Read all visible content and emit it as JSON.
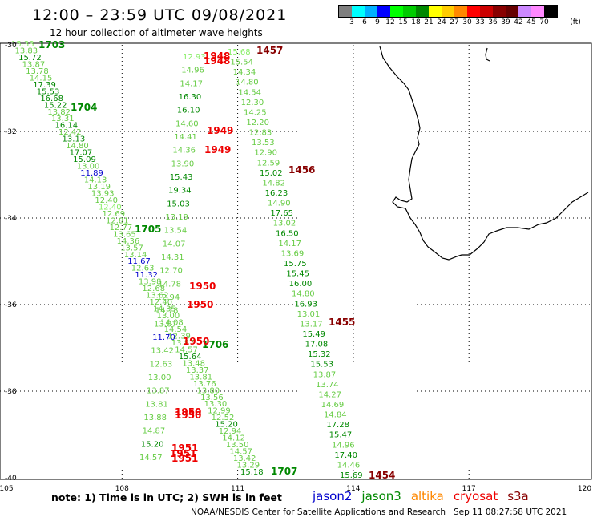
{
  "header": {
    "title": "12:00 – 23:59 UTC 09/08/2021",
    "subtitle": "12 hour collection of altimeter wave heights"
  },
  "colorbar": {
    "colors": [
      "#7f7f7f",
      "#00ffff",
      "#00b0ff",
      "#0000ff",
      "#00ff00",
      "#00cc00",
      "#008800",
      "#ffff00",
      "#ffcc00",
      "#ff8800",
      "#ff0000",
      "#cc0000",
      "#880000",
      "#660000",
      "#cc88ff",
      "#ff88ff",
      "#000000"
    ],
    "labels": [
      "3",
      "6",
      "9",
      "12",
      "15",
      "18",
      "21",
      "24",
      "27",
      "30",
      "33",
      "36",
      "39",
      "42",
      "45",
      "70",
      "(ft)"
    ]
  },
  "axes": {
    "lon_ticks": [
      "105",
      "108",
      "111",
      "114",
      "117",
      "120"
    ],
    "lat_ticks": [
      "-30",
      "-32",
      "-34",
      "-36",
      "-38",
      "-40"
    ]
  },
  "tracks": {
    "jason3_left": {
      "values": [
        "15.33",
        "13.83",
        "15.72",
        "13.87",
        "13.78",
        "14.15",
        "17.39",
        "15.53",
        "16.68",
        "15.22",
        "13.82",
        "13.31",
        "16.14",
        "12.42",
        "13.13",
        "14.80",
        "17.07",
        "15.09",
        "13.00",
        "11.89",
        "14.13",
        "13.19",
        "13.93",
        "12.40",
        "12.40",
        "12.69",
        "12.81",
        "12.77",
        "13.65",
        "14.36",
        "13.57",
        "13.14",
        "11.67",
        "12.63",
        "11.32",
        "13.98",
        "12.68",
        "13.62",
        "12.40",
        "14.35",
        "13.00",
        "14.08",
        "14.54",
        "12.39",
        "13.87",
        "14.57",
        "15.64",
        "13.48",
        "13.37",
        "13.81",
        "13.76",
        "13.80",
        "13.56",
        "13.30",
        "12.99",
        "12.52",
        "15.20",
        "12.94",
        "14.12",
        "13.50",
        "14.57",
        "13.42",
        "13.29",
        "15.18"
      ],
      "colors": [
        "#88ee66",
        "#66cc44",
        "#008800",
        "#66cc44",
        "#66cc44",
        "#66cc44",
        "#008800",
        "#008800",
        "#008800",
        "#008800",
        "#66cc44",
        "#66cc44",
        "#008800",
        "#66cc44",
        "#008800",
        "#66cc44",
        "#008800",
        "#008800",
        "#66cc44",
        "#0000cc",
        "#66cc44",
        "#66cc44",
        "#66cc44",
        "#66cc44",
        "#88ee66",
        "#66cc44",
        "#66cc44",
        "#66cc44",
        "#66cc44",
        "#66cc44",
        "#66cc44",
        "#66cc44",
        "#0000cc",
        "#66cc44",
        "#0000cc",
        "#66cc44",
        "#66cc44",
        "#66cc44",
        "#66cc44",
        "#66cc44",
        "#66cc44",
        "#66cc44",
        "#66cc44",
        "#66cc44",
        "#66cc44",
        "#66cc44",
        "#008800",
        "#66cc44",
        "#66cc44",
        "#66cc44",
        "#66cc44",
        "#66cc44",
        "#66cc44",
        "#66cc44",
        "#66cc44",
        "#66cc44",
        "#008800",
        "#66cc44",
        "#66cc44",
        "#66cc44",
        "#66cc44",
        "#66cc44",
        "#66cc44",
        "#008800"
      ]
    },
    "jason3_mid": {
      "values": [
        "12.93",
        "14.96",
        "14.17",
        "16.30",
        "16.10",
        "14.60",
        "14.41",
        "14.36",
        "13.90",
        "15.43",
        "19.34",
        "15.03",
        "13.19",
        "13.54",
        "14.07",
        "14.31",
        "12.70",
        "14.78",
        "12.94",
        "14.78",
        "13.07",
        "11.70",
        "13.42",
        "12.63",
        "13.00",
        "13.87",
        "13.81",
        "13.88",
        "14.87",
        "15.20",
        "14.57"
      ],
      "colors": [
        "#88ee66",
        "#66cc44",
        "#66cc44",
        "#008800",
        "#008800",
        "#66cc44",
        "#66cc44",
        "#66cc44",
        "#66cc44",
        "#008800",
        "#008800",
        "#008800",
        "#66cc44",
        "#66cc44",
        "#66cc44",
        "#66cc44",
        "#66cc44",
        "#66cc44",
        "#66cc44",
        "#66cc44",
        "#66cc44",
        "#0000cc",
        "#66cc44",
        "#66cc44",
        "#66cc44",
        "#66cc44",
        "#66cc44",
        "#66cc44",
        "#66cc44",
        "#008800",
        "#66cc44"
      ],
      "time_labels": [
        {
          "text": "1703",
          "color": "#008800"
        },
        {
          "text": "1704",
          "color": "#008800"
        },
        {
          "text": "1705",
          "color": "#008800"
        },
        {
          "text": "1706",
          "color": "#008800"
        },
        {
          "text": "1707",
          "color": "#008800"
        }
      ]
    },
    "jason3_right": {
      "values": [
        "15.68",
        "15.54",
        "14.34",
        "14.80",
        "14.54",
        "12.30",
        "14.25",
        "12.20",
        "12.83",
        "13.53",
        "12.90",
        "12.59",
        "15.02",
        "14.82",
        "16.23",
        "14.90",
        "17.65",
        "13.02",
        "16.50",
        "14.17",
        "13.69",
        "15.75",
        "15.45",
        "16.00",
        "14.80",
        "16.93",
        "13.01",
        "13.17",
        "15.49",
        "17.08",
        "15.32",
        "15.53",
        "13.87",
        "13.74",
        "14.27",
        "14.69",
        "14.84",
        "17.28",
        "15.47",
        "14.96",
        "17.40",
        "14.46",
        "15.69"
      ],
      "colors": [
        "#88ee66",
        "#66cc44",
        "#66cc44",
        "#66cc44",
        "#66cc44",
        "#66cc44",
        "#66cc44",
        "#66cc44",
        "#66cc44",
        "#66cc44",
        "#66cc44",
        "#66cc44",
        "#008800",
        "#66cc44",
        "#008800",
        "#66cc44",
        "#008800",
        "#66cc44",
        "#008800",
        "#66cc44",
        "#66cc44",
        "#008800",
        "#008800",
        "#008800",
        "#66cc44",
        "#008800",
        "#66cc44",
        "#66cc44",
        "#008800",
        "#008800",
        "#008800",
        "#008800",
        "#66cc44",
        "#66cc44",
        "#66cc44",
        "#66cc44",
        "#66cc44",
        "#008800",
        "#008800",
        "#66cc44",
        "#008800",
        "#66cc44",
        "#008800"
      ]
    },
    "cryosat_labels": [
      {
        "text": "1948",
        "color": "#ee0000"
      },
      {
        "text": "1948",
        "color": "#ee0000"
      },
      {
        "text": "1949",
        "color": "#ee0000"
      },
      {
        "text": "1949",
        "color": "#ee0000"
      },
      {
        "text": "1950",
        "color": "#ee0000"
      },
      {
        "text": "1950",
        "color": "#ee0000"
      },
      {
        "text": "1950",
        "color": "#ee0000"
      },
      {
        "text": "1950",
        "color": "#ee0000"
      },
      {
        "text": "1950",
        "color": "#ee0000"
      },
      {
        "text": "1951",
        "color": "#ee0000"
      },
      {
        "text": "1951",
        "color": "#ee0000"
      },
      {
        "text": "1951",
        "color": "#ee0000"
      }
    ],
    "s3a_labels": [
      {
        "text": "1457",
        "color": "#880000"
      },
      {
        "text": "1456",
        "color": "#880000"
      },
      {
        "text": "1455",
        "color": "#880000"
      },
      {
        "text": "1454",
        "color": "#880000"
      }
    ]
  },
  "footer": {
    "note": "note: 1) Time is in UTC; 2) SWH is in feet",
    "legend": [
      {
        "name": "jason2",
        "color": "#0000cc"
      },
      {
        "name": "jason3",
        "color": "#008800"
      },
      {
        "name": "altika",
        "color": "#ff8800"
      },
      {
        "name": "cryosat",
        "color": "#ee0000"
      },
      {
        "name": "s3a",
        "color": "#880000"
      }
    ],
    "credit": "NOAA/NESDIS Center for Satellite Applications and Research   Sep 11 08:27:58 UTC 2021"
  }
}
